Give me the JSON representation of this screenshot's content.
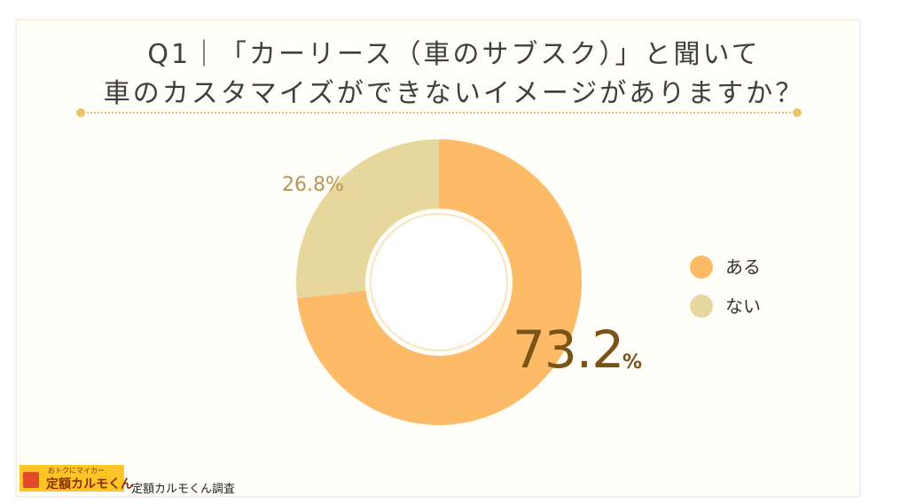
{
  "title_line1": "Q1｜「カーリース（車のサブスク）」と聞いて",
  "title_line2": "車のカスタマイズができないイメージがありますか？",
  "chart_data": {
    "type": "pie",
    "donut": true,
    "categories": [
      "ある",
      "ない"
    ],
    "values": [
      73.2,
      26.8
    ],
    "colors": [
      "#fdbb67",
      "#e8d79c"
    ],
    "value_labels": [
      "73.2",
      "26.8%"
    ],
    "unit": "%",
    "legend_position": "right"
  },
  "footer": {
    "logo_tagline": "おトクにマイカー",
    "logo_brand": "定額カルモくん",
    "source": "定額カルモくん調査"
  }
}
